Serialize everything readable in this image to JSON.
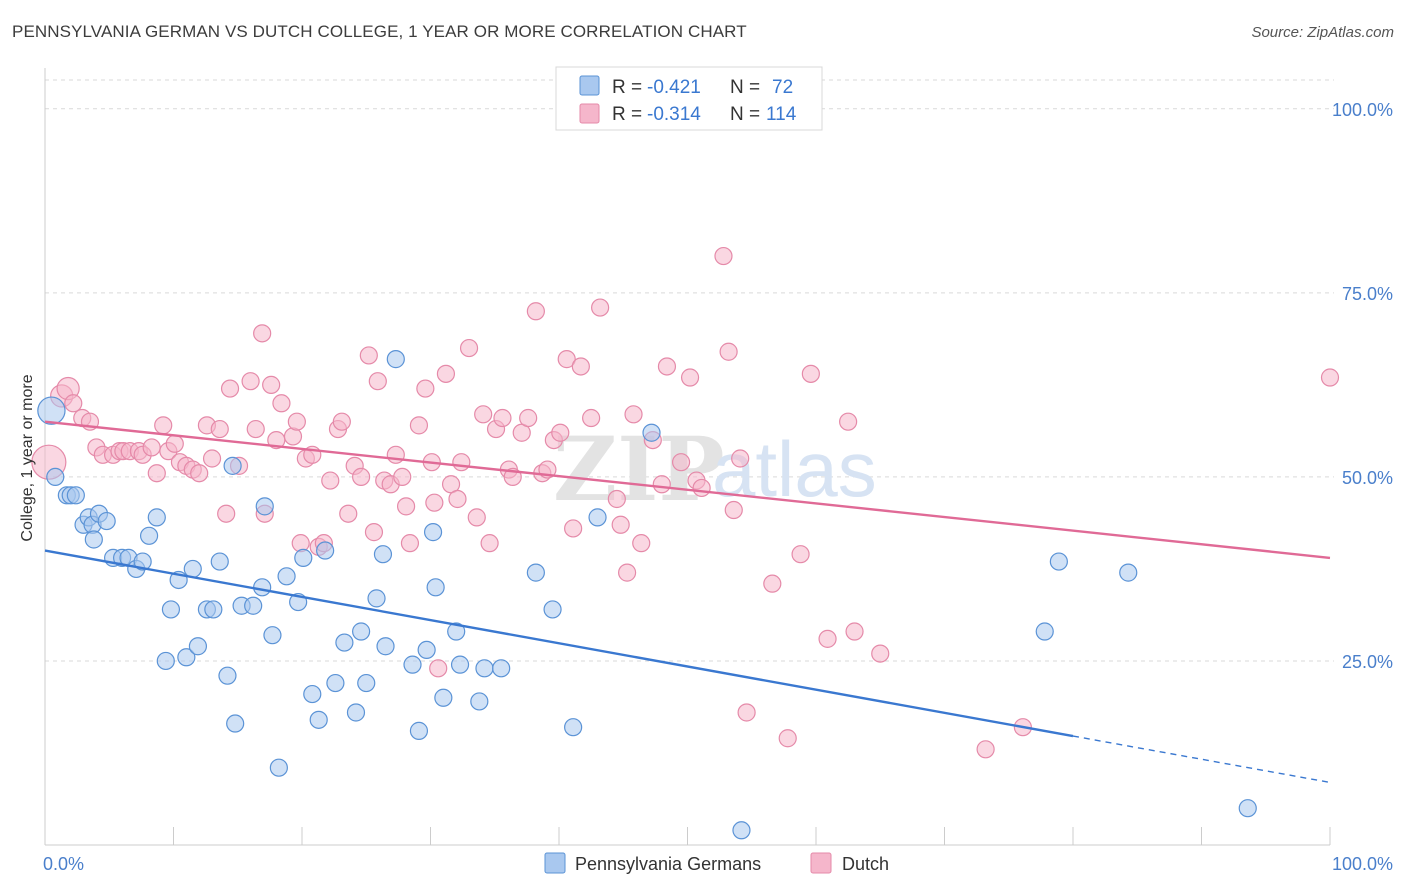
{
  "header": {
    "title": "PENNSYLVANIA GERMAN VS DUTCH COLLEGE, 1 YEAR OR MORE CORRELATION CHART",
    "source": "Source: ZipAtlas.com"
  },
  "watermark": {
    "zip": "ZIP",
    "atlas": "atlas"
  },
  "colors": {
    "blue_fill": "#a9c8ef",
    "blue_stroke": "#5b93d6",
    "blue_line": "#3a78d0",
    "pink_fill": "#f5b6cb",
    "pink_stroke": "#e58aa9",
    "pink_line": "#e06a96",
    "axis_label": "#4a7fcb",
    "grid": "#d9d9d9"
  },
  "legend_top": {
    "rows": [
      {
        "r_label": "R = ",
        "r_value": "-0.421",
        "n_label": "N = ",
        "n_value": "72"
      },
      {
        "r_label": "R = ",
        "r_value": "-0.314",
        "n_label": "N = ",
        "n_value": "114"
      }
    ]
  },
  "chart_data": {
    "type": "scatter",
    "title": "PENNSYLVANIA GERMAN VS DUTCH COLLEGE, 1 YEAR OR MORE CORRELATION CHART",
    "xlabel": "",
    "ylabel": "College, 1 year or more",
    "xlim": [
      0,
      100
    ],
    "ylim": [
      0,
      105
    ],
    "x_tick_labels": [
      "0.0%",
      "100.0%"
    ],
    "y_ticks": [
      25,
      50,
      75,
      100
    ],
    "y_tick_labels": [
      "25.0%",
      "50.0%",
      "75.0%",
      "100.0%"
    ],
    "grid": true,
    "legend_position": "bottom-center",
    "series": [
      {
        "name": "Pennsylvania Germans",
        "r": -0.421,
        "n": 72,
        "trend": {
          "x0": 0,
          "y0": 40.0,
          "x1": 80,
          "y1": 14.8,
          "dashed_to_x": 100,
          "dashed_to_y": 8.5
        },
        "points": [
          [
            0.5,
            59,
            1.6
          ],
          [
            0.8,
            50,
            1
          ],
          [
            1.7,
            47.5,
            1
          ],
          [
            2,
            47.5,
            1
          ],
          [
            2.4,
            47.5,
            1
          ],
          [
            3,
            43.5,
            1
          ],
          [
            3.4,
            44.5,
            1
          ],
          [
            3.7,
            43.5,
            1
          ],
          [
            3.8,
            41.5,
            1
          ],
          [
            4.2,
            45,
            1
          ],
          [
            4.8,
            44,
            1
          ],
          [
            5.3,
            39,
            1
          ],
          [
            6,
            39,
            1
          ],
          [
            6.5,
            39,
            1
          ],
          [
            7.1,
            37.5,
            1
          ],
          [
            7.6,
            38.5,
            1
          ],
          [
            8.1,
            42,
            1
          ],
          [
            8.7,
            44.5,
            1
          ],
          [
            9.4,
            25,
            1
          ],
          [
            9.8,
            32,
            1
          ],
          [
            10.4,
            36,
            1
          ],
          [
            11,
            25.5,
            1
          ],
          [
            11.5,
            37.5,
            1
          ],
          [
            11.9,
            27,
            1
          ],
          [
            12.6,
            32,
            1
          ],
          [
            13.1,
            32,
            1
          ],
          [
            13.6,
            38.5,
            1
          ],
          [
            14.2,
            23,
            1
          ],
          [
            14.6,
            51.5,
            1
          ],
          [
            14.8,
            16.5,
            1
          ],
          [
            15.3,
            32.5,
            1
          ],
          [
            16.2,
            32.5,
            1
          ],
          [
            16.9,
            35,
            1
          ],
          [
            17.1,
            46,
            1
          ],
          [
            17.7,
            28.5,
            1
          ],
          [
            18.2,
            10.5,
            1
          ],
          [
            18.8,
            36.5,
            1
          ],
          [
            19.7,
            33,
            1
          ],
          [
            20.1,
            39,
            1
          ],
          [
            20.8,
            20.5,
            1
          ],
          [
            21.3,
            17,
            1
          ],
          [
            21.8,
            40,
            1
          ],
          [
            22.6,
            22,
            1
          ],
          [
            23.3,
            27.5,
            1
          ],
          [
            24.2,
            18,
            1
          ],
          [
            24.6,
            29,
            1
          ],
          [
            25,
            22,
            1
          ],
          [
            25.8,
            33.5,
            1
          ],
          [
            26.3,
            39.5,
            1
          ],
          [
            26.5,
            27,
            1
          ],
          [
            27.3,
            66,
            1
          ],
          [
            28.6,
            24.5,
            1
          ],
          [
            29.1,
            15.5,
            1
          ],
          [
            29.7,
            26.5,
            1
          ],
          [
            30.2,
            42.5,
            1
          ],
          [
            30.4,
            35,
            1
          ],
          [
            31,
            20,
            1
          ],
          [
            32,
            29,
            1
          ],
          [
            32.3,
            24.5,
            1
          ],
          [
            33.8,
            19.5,
            1
          ],
          [
            34.2,
            24,
            1
          ],
          [
            35.5,
            24,
            1
          ],
          [
            38.2,
            37,
            1
          ],
          [
            39.5,
            32,
            1
          ],
          [
            41.1,
            16,
            1
          ],
          [
            43,
            44.5,
            1
          ],
          [
            47.2,
            56,
            1
          ],
          [
            54.2,
            2,
            1
          ],
          [
            77.8,
            29,
            1
          ],
          [
            78.9,
            38.5,
            1
          ],
          [
            84.3,
            37,
            1
          ],
          [
            93.6,
            5,
            1
          ]
        ]
      },
      {
        "name": "Dutch",
        "r": -0.314,
        "n": 114,
        "trend": {
          "x0": 0,
          "y0": 57.5,
          "x1": 100,
          "y1": 39.0
        },
        "points": [
          [
            0.3,
            52,
            2
          ],
          [
            1.3,
            61,
            1.3
          ],
          [
            1.8,
            62,
            1.3
          ],
          [
            2.2,
            60,
            1
          ],
          [
            2.9,
            58,
            1
          ],
          [
            3.5,
            57.5,
            1
          ],
          [
            4,
            54,
            1
          ],
          [
            4.5,
            53,
            1
          ],
          [
            5.3,
            53,
            1
          ],
          [
            5.8,
            53.5,
            1
          ],
          [
            6.1,
            53.5,
            1
          ],
          [
            6.6,
            53.5,
            1
          ],
          [
            7.3,
            53.5,
            1
          ],
          [
            7.6,
            53,
            1
          ],
          [
            8.3,
            54,
            1
          ],
          [
            8.7,
            50.5,
            1
          ],
          [
            9.2,
            57,
            1
          ],
          [
            9.6,
            53.5,
            1
          ],
          [
            10.1,
            54.5,
            1
          ],
          [
            10.5,
            52,
            1
          ],
          [
            11,
            51.5,
            1
          ],
          [
            11.5,
            51,
            1
          ],
          [
            12,
            50.5,
            1
          ],
          [
            12.6,
            57,
            1
          ],
          [
            13,
            52.5,
            1
          ],
          [
            13.6,
            56.5,
            1
          ],
          [
            14.1,
            45,
            1
          ],
          [
            14.4,
            62,
            1
          ],
          [
            15.1,
            51.5,
            1
          ],
          [
            16,
            63,
            1
          ],
          [
            16.4,
            56.5,
            1
          ],
          [
            16.9,
            69.5,
            1
          ],
          [
            17.1,
            45,
            1
          ],
          [
            17.6,
            62.5,
            1
          ],
          [
            18,
            55,
            1
          ],
          [
            18.4,
            60,
            1
          ],
          [
            19.3,
            55.5,
            1
          ],
          [
            19.6,
            57.5,
            1
          ],
          [
            19.9,
            41,
            1
          ],
          [
            20.3,
            52.5,
            1
          ],
          [
            20.8,
            53,
            1
          ],
          [
            21.3,
            40.5,
            1
          ],
          [
            21.7,
            41,
            1
          ],
          [
            22.2,
            49.5,
            1
          ],
          [
            22.8,
            56.5,
            1
          ],
          [
            23.1,
            57.5,
            1
          ],
          [
            23.6,
            45,
            1
          ],
          [
            24.1,
            51.5,
            1
          ],
          [
            24.6,
            50,
            1
          ],
          [
            25.2,
            66.5,
            1
          ],
          [
            25.6,
            42.5,
            1
          ],
          [
            25.9,
            63,
            1
          ],
          [
            26.4,
            49.5,
            1
          ],
          [
            26.9,
            49,
            1
          ],
          [
            27.3,
            53,
            1
          ],
          [
            27.8,
            50,
            1
          ],
          [
            28.1,
            46,
            1
          ],
          [
            28.4,
            41,
            1
          ],
          [
            29.1,
            57,
            1
          ],
          [
            29.6,
            62,
            1
          ],
          [
            30.1,
            52,
            1
          ],
          [
            30.3,
            46.5,
            1
          ],
          [
            30.6,
            24,
            1
          ],
          [
            31.2,
            64,
            1
          ],
          [
            31.6,
            49,
            1
          ],
          [
            32.1,
            47,
            1
          ],
          [
            32.4,
            52,
            1
          ],
          [
            33,
            67.5,
            1
          ],
          [
            33.6,
            44.5,
            1
          ],
          [
            34.1,
            58.5,
            1
          ],
          [
            34.6,
            41,
            1
          ],
          [
            35.1,
            56.5,
            1
          ],
          [
            35.6,
            58,
            1
          ],
          [
            36.1,
            51,
            1
          ],
          [
            36.4,
            50,
            1
          ],
          [
            37.1,
            56,
            1
          ],
          [
            37.6,
            58,
            1
          ],
          [
            38.2,
            72.5,
            1
          ],
          [
            38.7,
            50.5,
            1
          ],
          [
            39.1,
            51,
            1
          ],
          [
            39.6,
            55,
            1
          ],
          [
            40.1,
            56,
            1
          ],
          [
            40.6,
            66,
            1
          ],
          [
            41.1,
            43,
            1
          ],
          [
            41.7,
            65,
            1
          ],
          [
            42.5,
            58,
            1
          ],
          [
            43.2,
            73,
            1
          ],
          [
            44.5,
            47,
            1
          ],
          [
            44.8,
            43.5,
            1
          ],
          [
            45.3,
            37,
            1
          ],
          [
            45.8,
            58.5,
            1
          ],
          [
            46.4,
            41,
            1
          ],
          [
            47.3,
            55,
            1
          ],
          [
            48,
            49,
            1
          ],
          [
            48.4,
            65,
            1
          ],
          [
            49.5,
            52,
            1
          ],
          [
            50.2,
            63.5,
            1
          ],
          [
            50.7,
            49.5,
            1
          ],
          [
            51.1,
            48.5,
            1
          ],
          [
            52.8,
            80,
            1
          ],
          [
            53.2,
            67,
            1
          ],
          [
            53.6,
            45.5,
            1
          ],
          [
            54.1,
            52.5,
            1
          ],
          [
            54.6,
            18,
            1
          ],
          [
            56.6,
            35.5,
            1
          ],
          [
            57.8,
            14.5,
            1
          ],
          [
            58.8,
            39.5,
            1
          ],
          [
            59.6,
            64,
            1
          ],
          [
            60.9,
            28,
            1
          ],
          [
            62.5,
            57.5,
            1
          ],
          [
            63,
            29,
            1
          ],
          [
            65,
            26,
            1
          ],
          [
            73.2,
            13,
            1
          ],
          [
            76.1,
            16,
            1
          ],
          [
            100,
            63.5,
            1
          ]
        ]
      }
    ]
  }
}
